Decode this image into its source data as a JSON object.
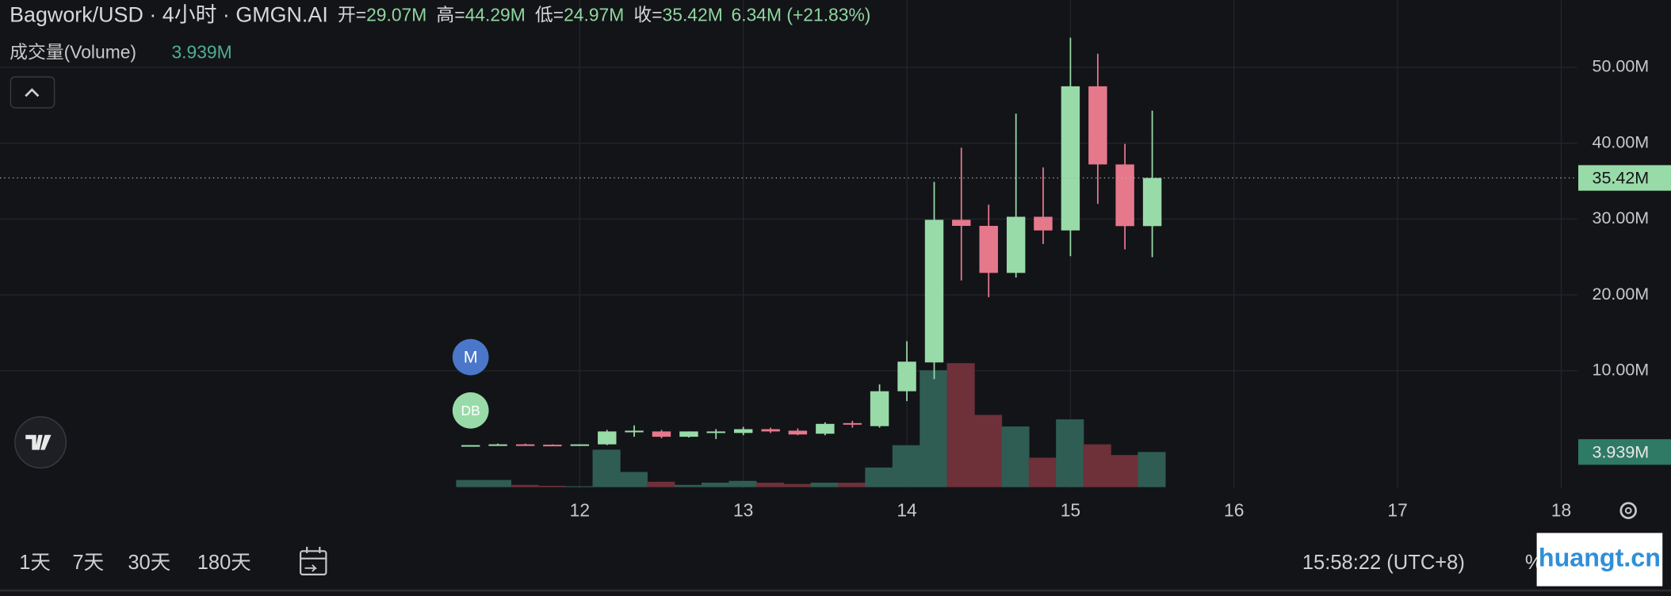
{
  "header": {
    "title": "Bagwork/USD · 4小时 · GMGN.AI",
    "ohlc": [
      {
        "label": "开=",
        "value": "29.07M"
      },
      {
        "label": "高=",
        "value": "44.29M"
      },
      {
        "label": "低=",
        "value": "24.97M"
      },
      {
        "label": "收=",
        "value": "35.42M"
      }
    ],
    "change": "6.34M (+21.83%)",
    "volume_label": "成交量(Volume)",
    "volume_value": "3.939M"
  },
  "chart_data": {
    "type": "candlestick",
    "x": [
      11.333,
      11.5,
      11.667,
      11.833,
      12,
      12.167,
      12.333,
      12.5,
      12.667,
      12.833,
      13,
      13.167,
      13.333,
      13.5,
      13.667,
      13.833,
      14,
      14.167,
      14.333,
      14.5,
      14.667,
      14.833,
      15,
      15.167,
      15.333,
      15.5
    ],
    "open": [
      0.1,
      0.2,
      0.3,
      0.25,
      0.2,
      0.3,
      1.9,
      2.0,
      1.3,
      1.9,
      1.8,
      2.3,
      2.1,
      1.7,
      3.1,
      2.7,
      7.3,
      11.1,
      29.9,
      29.1,
      22.9,
      30.3,
      28.5,
      47.5,
      37.2,
      29.07
    ],
    "high": [
      0.2,
      0.4,
      0.4,
      0.3,
      0.3,
      2.2,
      2.8,
      2.2,
      2.0,
      2.3,
      2.6,
      2.5,
      2.4,
      3.2,
      3.4,
      8.2,
      13.9,
      34.9,
      39.4,
      31.9,
      43.9,
      36.8,
      53.9,
      51.8,
      39.9,
      44.29
    ],
    "low": [
      0.05,
      0.15,
      0.2,
      0.15,
      0.15,
      0.2,
      1.3,
      1.1,
      1.2,
      1.0,
      1.5,
      1.8,
      1.5,
      1.5,
      2.5,
      2.5,
      6.0,
      8.9,
      21.9,
      19.7,
      22.3,
      26.7,
      25.1,
      32.0,
      26.0,
      24.97
    ],
    "close": [
      0.2,
      0.3,
      0.25,
      0.2,
      0.3,
      2.0,
      2.1,
      1.3,
      2.0,
      2.0,
      2.3,
      2.0,
      1.6,
      3.0,
      2.9,
      7.3,
      11.2,
      29.9,
      29.1,
      22.9,
      30.3,
      28.5,
      47.5,
      37.2,
      29.07,
      35.42
    ],
    "volume": [
      0.8,
      0.8,
      0.25,
      0.15,
      0.1,
      4.2,
      1.7,
      0.6,
      0.25,
      0.5,
      0.7,
      0.5,
      0.35,
      0.5,
      0.5,
      2.2,
      4.7,
      13.1,
      13.9,
      8.1,
      6.8,
      3.3,
      7.6,
      4.8,
      3.6,
      3.939
    ],
    "up_color": "#98dba8",
    "down_color": "#e6788c",
    "volume_up_color": "#2f5d53",
    "volume_down_color": "#6e3039",
    "xlim": [
      8.456,
      18.098
    ],
    "xticks": [
      12,
      13,
      14,
      15,
      16,
      17,
      18
    ],
    "ylim": [
      -5.48,
      58.85
    ],
    "yticks": [
      {
        "value": 10,
        "label": "10.00M"
      },
      {
        "value": 20,
        "label": "20.00M"
      },
      {
        "value": 30,
        "label": "30.00M"
      },
      {
        "value": 40,
        "label": "40.00M"
      },
      {
        "value": 50,
        "label": "50.00M"
      }
    ],
    "y2lim": [
      0,
      54.6
    ],
    "grid": true,
    "markers": [
      "M",
      "DB"
    ],
    "last_price_label": "35.42M",
    "last_volume_label": "3.939M"
  },
  "toolbar": {
    "ranges": [
      "1天",
      "7天",
      "30天",
      "180天"
    ],
    "time": "15:58:22 (UTC+8)",
    "percent": "%"
  },
  "watermark": "huangt.cn"
}
